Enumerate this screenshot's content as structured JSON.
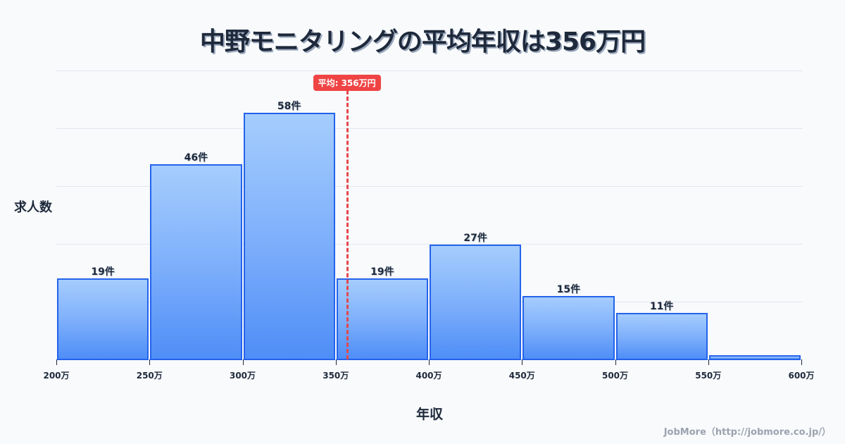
{
  "header": {
    "title": "中野モニタリングの平均年収は356万円"
  },
  "axes": {
    "ylabel": "求人数",
    "xlabel": "年収"
  },
  "footer": {
    "credit": "JobMore（http://jobmore.co.jp/）"
  },
  "average": {
    "label": "平均: 356万円",
    "value": 356,
    "color": "#ef4444"
  },
  "chart_data": {
    "type": "bar",
    "title": "中野モニタリングの平均年収は356万円",
    "xlabel": "年収",
    "ylabel": "求人数",
    "categories": [
      "200-250万",
      "250-300万",
      "300-350万",
      "350-400万",
      "400-450万",
      "450-500万",
      "500-550万",
      "550-600万"
    ],
    "bin_edges": [
      200,
      250,
      300,
      350,
      400,
      450,
      500,
      550,
      600
    ],
    "values": [
      19,
      46,
      58,
      19,
      27,
      15,
      11,
      1
    ],
    "value_labels": [
      "19件",
      "46件",
      "58件",
      "19件",
      "27件",
      "15件",
      "11件",
      ""
    ],
    "tick_labels": [
      "200万",
      "250万",
      "300万",
      "350万",
      "400万",
      "450万",
      "500万",
      "550万",
      "600万"
    ],
    "xlim": [
      200,
      600
    ],
    "ylim": [
      0,
      68
    ],
    "grid": true,
    "annotations": [
      {
        "type": "vline",
        "x": 356,
        "label": "平均: 356万円"
      }
    ],
    "colors": {
      "bar_fill_top": "#a5cdfd",
      "bar_fill_bottom": "#4f8ef7",
      "bar_border": "#2563eb",
      "avg_line": "#e5484d"
    }
  }
}
